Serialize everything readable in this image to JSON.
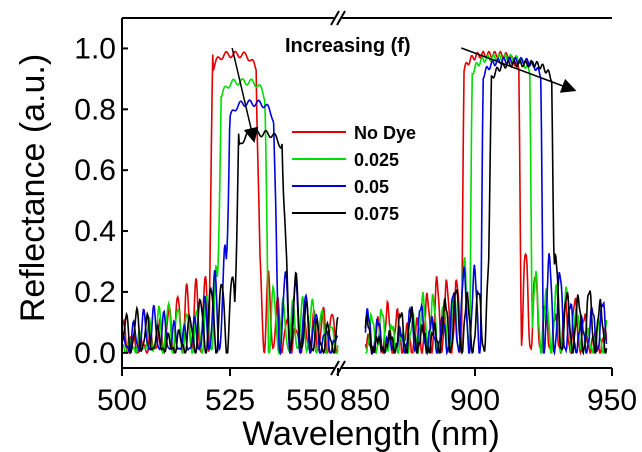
{
  "chart_data": {
    "type": "line",
    "title": "",
    "xlabel": "Wavelength (nm)",
    "ylabel": "Reflectance (a.u.)",
    "ylim": [
      -0.05,
      1.1
    ],
    "broken_x_axis": true,
    "x_segments": [
      {
        "xlim": [
          500,
          550
        ],
        "ticks": [
          500,
          525,
          550
        ]
      },
      {
        "xlim": [
          850,
          950
        ],
        "ticks": [
          850,
          900,
          950
        ]
      }
    ],
    "x_tick_labels": [
      "500",
      "525",
      "550",
      "850",
      "900",
      "950"
    ],
    "y_ticks": [
      0.0,
      0.2,
      0.4,
      0.6,
      0.8,
      1.0
    ],
    "y_tick_labels": [
      "0.0",
      "0.2",
      "0.4",
      "0.6",
      "0.8",
      "1.0"
    ],
    "grid": false,
    "legend": {
      "placement": "center",
      "title": "Increasing (f)"
    },
    "annotation": "Increasing (f)",
    "series": [
      {
        "name": "No Dye",
        "color": "#e00000",
        "left_band": [
          521,
          531
        ],
        "left_peak": 0.98,
        "right_band": [
          896,
          916
        ],
        "right_peak": 0.98
      },
      {
        "name": "0.025",
        "color": "#00dd00",
        "left_band": [
          523,
          533
        ],
        "left_peak": 0.89,
        "right_band": [
          899,
          920
        ],
        "right_peak": 0.97
      },
      {
        "name": "0.05",
        "color": "#0000dd",
        "left_band": [
          525,
          535
        ],
        "left_peak": 0.82,
        "right_band": [
          903,
          924
        ],
        "right_peak": 0.96
      },
      {
        "name": "0.075",
        "color": "#000000",
        "left_band": [
          527,
          537
        ],
        "left_peak": 0.72,
        "right_band": [
          906,
          928
        ],
        "right_peak": 0.95
      }
    ]
  }
}
